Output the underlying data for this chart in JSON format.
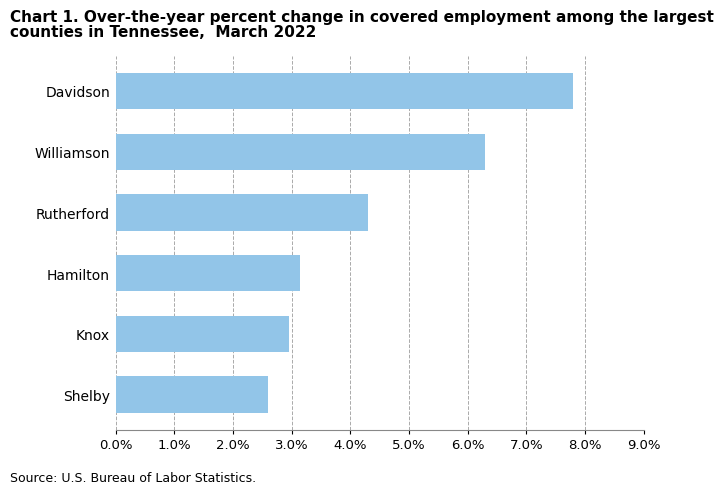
{
  "title_line1": "Chart 1. Over-the-year percent change in covered employment among the largest",
  "title_line2": "counties in Tennessee,  March 2022",
  "counties": [
    "Davidson",
    "Williamson",
    "Rutherford",
    "Hamilton",
    "Knox",
    "Shelby"
  ],
  "values": [
    7.8,
    6.3,
    4.3,
    3.15,
    2.95,
    2.6
  ],
  "bar_color": "#92C5E8",
  "xlim": [
    0,
    9.0
  ],
  "xticks": [
    0.0,
    1.0,
    2.0,
    3.0,
    4.0,
    5.0,
    6.0,
    7.0,
    8.0,
    9.0
  ],
  "source_text": "Source: U.S. Bureau of Labor Statistics.",
  "background_color": "#ffffff",
  "grid_color": "#aaaaaa",
  "title_fontsize": 11,
  "label_fontsize": 10,
  "tick_fontsize": 9.5,
  "source_fontsize": 9
}
